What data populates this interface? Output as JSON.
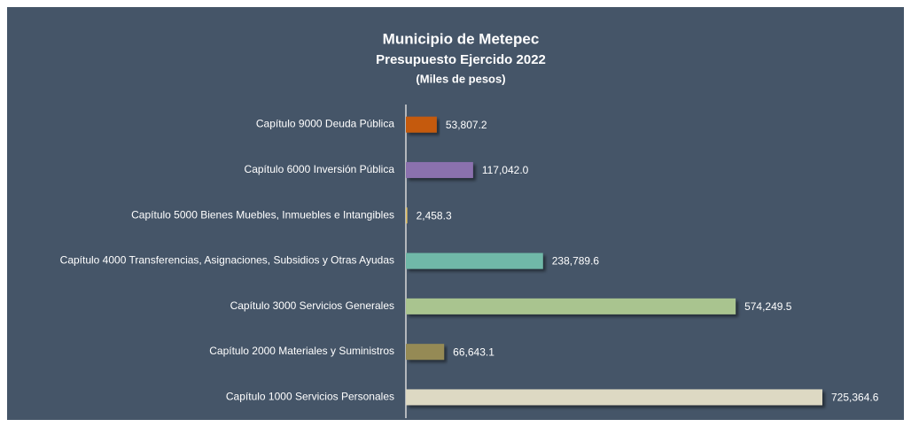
{
  "chart_data": {
    "type": "barh",
    "title": "Municipio de Metepec",
    "subtitle": "Presupuesto Ejercido 2022",
    "unit_label": "(Miles de pesos)",
    "categories": [
      "Capítulo 9000 Deuda Pública",
      "Capítulo 6000 Inversión Pública",
      "Capítulo 5000 Bienes Muebles, Inmuebles e Intangibles",
      "Capítulo 4000 Transferencias, Asignaciones, Subsidios y Otras Ayudas",
      "Capítulo 3000 Servicios Generales",
      "Capítulo 2000 Materiales y Suministros",
      "Capítulo 1000 Servicios Personales"
    ],
    "values": [
      53807.2,
      117042.0,
      2458.3,
      238789.6,
      574249.5,
      66643.1,
      725364.6
    ],
    "value_labels": [
      "53,807.2",
      "117,042.0",
      "2,458.3",
      "238,789.6",
      "574,249.5",
      "66,643.1",
      "725,364.6"
    ],
    "colors": [
      "#c55a11",
      "#8b71ae",
      "#e6c56a",
      "#6fb8a8",
      "#a9c48f",
      "#958a55",
      "#ddd9c3"
    ]
  }
}
